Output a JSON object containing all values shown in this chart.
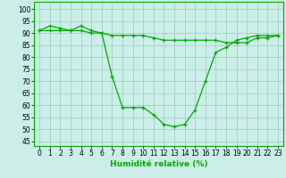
{
  "series1": {
    "x": [
      0,
      1,
      2,
      3,
      4,
      5,
      6,
      7,
      8,
      9,
      10,
      11,
      12,
      13,
      14,
      15,
      16,
      17,
      18,
      19,
      20,
      21,
      22,
      23
    ],
    "y": [
      91,
      93,
      92,
      91,
      93,
      91,
      90,
      72,
      59,
      59,
      59,
      56,
      52,
      51,
      52,
      58,
      70,
      82,
      84,
      87,
      88,
      89,
      89,
      89
    ]
  },
  "series2": {
    "x": [
      0,
      1,
      2,
      3,
      4,
      5,
      6,
      7,
      8,
      9,
      10,
      11,
      12,
      13,
      14,
      15,
      16,
      17,
      18,
      19,
      20,
      21,
      22,
      23
    ],
    "y": [
      91,
      91,
      91,
      91,
      91,
      90,
      90,
      89,
      89,
      89,
      89,
      88,
      87,
      87,
      87,
      87,
      87,
      87,
      86,
      86,
      86,
      88,
      88,
      89
    ]
  },
  "line_color": "#00aa00",
  "bg_color": "#cceee8",
  "grid_color": "#99ccbb",
  "xlabel": "Humidité relative (%)",
  "ylabel_ticks": [
    45,
    50,
    55,
    60,
    65,
    70,
    75,
    80,
    85,
    90,
    95,
    100
  ],
  "xlim": [
    -0.5,
    23.5
  ],
  "ylim": [
    43,
    103
  ],
  "xtick_labels": [
    "0",
    "1",
    "2",
    "3",
    "4",
    "5",
    "6",
    "7",
    "8",
    "9",
    "10",
    "11",
    "12",
    "13",
    "14",
    "15",
    "16",
    "17",
    "18",
    "19",
    "20",
    "21",
    "22",
    "23"
  ],
  "axis_fontsize": 5.5,
  "label_fontsize": 6.5
}
